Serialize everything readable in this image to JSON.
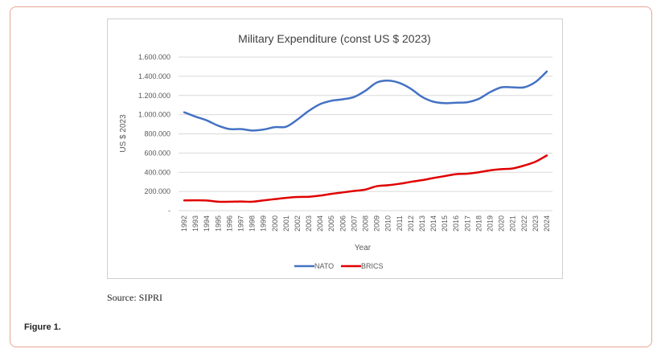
{
  "figure_label": "Figure 1.",
  "source_text": "Source: SIPRI",
  "chart_data": {
    "type": "line",
    "title": "Military Expenditure (const US $ 2023)",
    "xlabel": "Year",
    "ylabel": "US $ 2023",
    "ylim": [
      0,
      1600000
    ],
    "y_ticks": [
      0,
      200000,
      400000,
      600000,
      800000,
      1000000,
      1200000,
      1400000,
      1600000
    ],
    "y_tick_labels": [
      "-",
      "200.000",
      "400.000",
      "600.000",
      "800.000",
      "1.000.000",
      "1.200.000",
      "1.400.000",
      "1.600.000"
    ],
    "grid": true,
    "legend_position": "bottom",
    "x": [
      "1992",
      "1993",
      "1994",
      "1995",
      "1996",
      "1997",
      "1998",
      "1999",
      "2000",
      "2001",
      "2002",
      "2003",
      "2004",
      "2005",
      "2006",
      "2007",
      "2008",
      "2009",
      "2010",
      "2011",
      "2012",
      "2013",
      "2014",
      "2015",
      "2016",
      "2017",
      "2018",
      "2019",
      "2020",
      "2021",
      "2022",
      "2023",
      "2024"
    ],
    "series": [
      {
        "name": "NATO",
        "color": "#4472c4",
        "values": [
          1025000,
          980000,
          940000,
          885000,
          850000,
          850000,
          835000,
          845000,
          870000,
          875000,
          950000,
          1040000,
          1110000,
          1145000,
          1160000,
          1185000,
          1250000,
          1335000,
          1355000,
          1330000,
          1270000,
          1185000,
          1135000,
          1120000,
          1125000,
          1130000,
          1165000,
          1235000,
          1285000,
          1285000,
          1285000,
          1340000,
          1450000
        ]
      },
      {
        "name": "BRICS",
        "color": "#e00000",
        "values": [
          107000,
          108000,
          106000,
          93000,
          93000,
          95000,
          93000,
          107000,
          120000,
          133000,
          142000,
          145000,
          157000,
          175000,
          190000,
          205000,
          220000,
          255000,
          265000,
          280000,
          300000,
          318000,
          340000,
          360000,
          380000,
          385000,
          400000,
          420000,
          432000,
          440000,
          470000,
          510000,
          575000
        ]
      }
    ]
  }
}
